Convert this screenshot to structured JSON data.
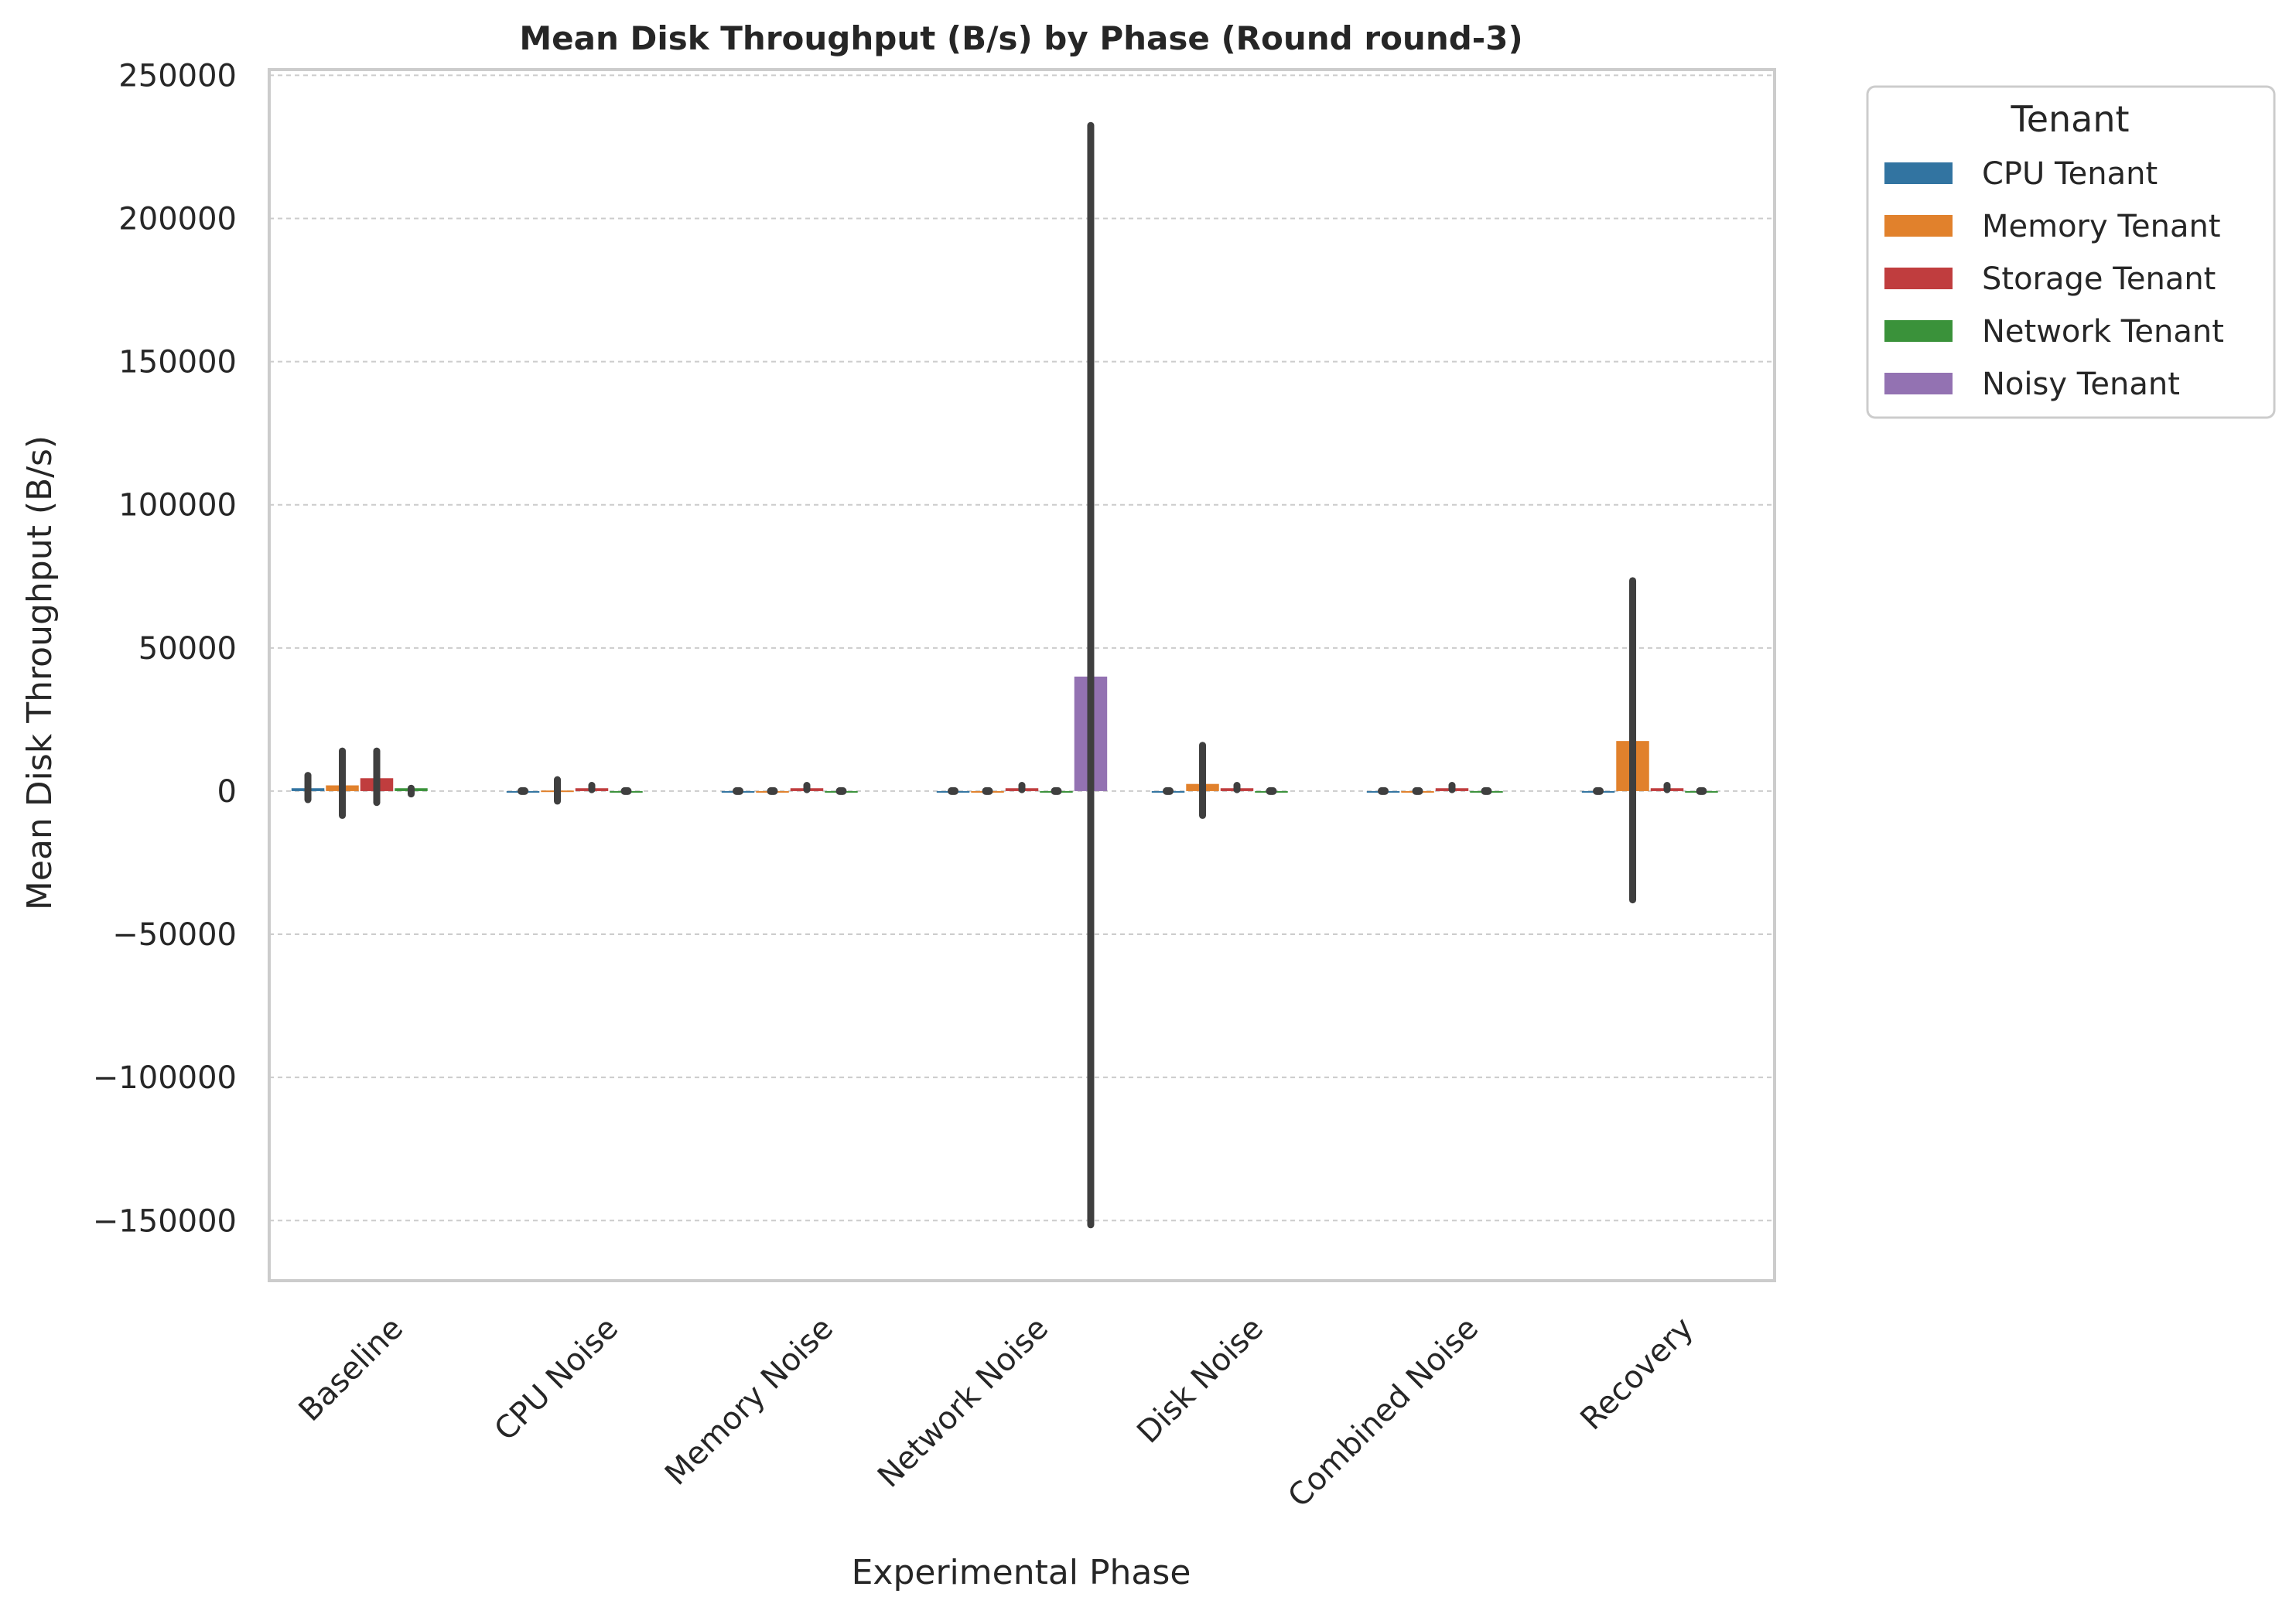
{
  "chart_data": {
    "type": "bar",
    "title": "Mean Disk Throughput (B/s) by Phase (Round round-3)",
    "xlabel": "Experimental Phase",
    "ylabel": "Mean Disk Throughput (B/s)",
    "ylim": [
      -171000,
      252000
    ],
    "yticks": [
      -150000,
      -100000,
      -50000,
      0,
      50000,
      100000,
      150000,
      200000,
      250000
    ],
    "ytick_labels": [
      "−150000",
      "−100000",
      "−50000",
      "0",
      "50000",
      "100000",
      "150000",
      "200000",
      "250000"
    ],
    "grid": "y-dashed",
    "legend": {
      "title": "Tenant",
      "placement": "outside-upper-right"
    },
    "categories": [
      "Baseline",
      "CPU Noise",
      "Memory Noise",
      "Network Noise",
      "Disk Noise",
      "Combined Noise",
      "Recovery"
    ],
    "series": [
      {
        "name": "CPU Tenant",
        "color": "#3274a1",
        "values": [
          1000,
          0,
          0,
          0,
          0,
          0,
          0
        ],
        "err_low": [
          -3000,
          0,
          0,
          0,
          0,
          0,
          0
        ],
        "err_high": [
          5500,
          0,
          0,
          0,
          0,
          0,
          0
        ]
      },
      {
        "name": "Memory Tenant",
        "color": "#e1812c",
        "values": [
          2000,
          200,
          0,
          0,
          2500,
          0,
          17500
        ],
        "err_low": [
          -8500,
          -3500,
          0,
          0,
          -8500,
          0,
          -38000
        ],
        "err_high": [
          14000,
          4000,
          0,
          0,
          16000,
          0,
          73500
        ]
      },
      {
        "name": "Storage Tenant",
        "color": "#c03d3e",
        "values": [
          4500,
          1000,
          1000,
          1000,
          1000,
          1000,
          1000
        ],
        "err_low": [
          -4000,
          500,
          500,
          500,
          500,
          500,
          500
        ],
        "err_high": [
          14000,
          2000,
          2000,
          2000,
          2000,
          2000,
          2000
        ]
      },
      {
        "name": "Network Tenant",
        "color": "#3a923a",
        "values": [
          1000,
          0,
          0,
          0,
          0,
          0,
          0
        ],
        "err_low": [
          -1000,
          0,
          0,
          0,
          0,
          0,
          0
        ],
        "err_high": [
          1000,
          0,
          0,
          0,
          0,
          0,
          0
        ]
      },
      {
        "name": "Noisy Tenant",
        "color": "#9372b2",
        "values": [
          null,
          null,
          null,
          40000,
          null,
          null,
          null
        ],
        "err_low": [
          null,
          null,
          null,
          -151500,
          null,
          null,
          null
        ],
        "err_high": [
          null,
          null,
          null,
          232500,
          null,
          null,
          null
        ]
      }
    ]
  }
}
